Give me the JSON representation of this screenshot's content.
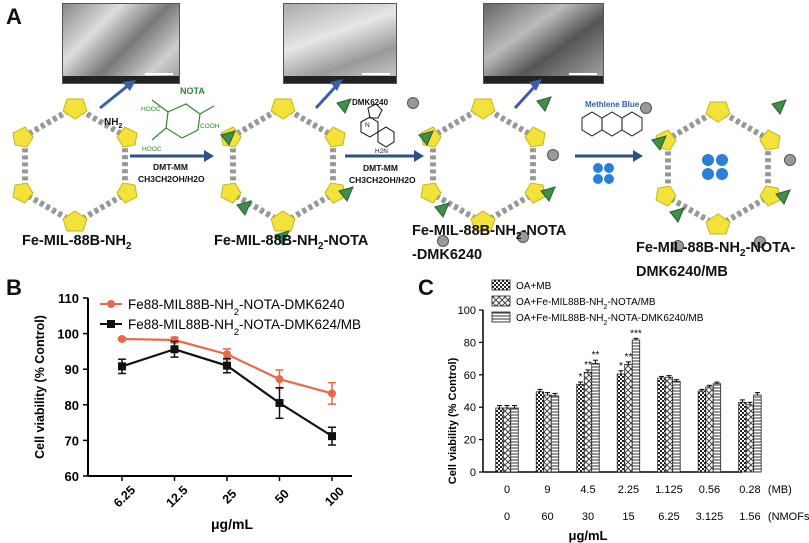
{
  "panelA": {
    "letter": "A",
    "compounds": [
      {
        "main": "Fe-MIL-88B-NH",
        "sub": "2",
        "rest": ""
      },
      {
        "main": "Fe-MIL-88B-NH",
        "sub": "2",
        "rest": "-NOTA"
      },
      {
        "main": "Fe-MIL-88B-NH",
        "sub": "2",
        "rest": "-NOTA",
        "line2": "-DMK6240"
      },
      {
        "main": "Fe-MIL-88B-NH",
        "sub": "2",
        "rest": "-NOTA-",
        "line2": "DMK6240/MB"
      }
    ],
    "nh2_label": "NH",
    "reagents": {
      "nota": "NOTA",
      "dmtmm1": "DMT-MM",
      "solvent1": "CH3CH2OH/H2O",
      "dmk": "DMK6240",
      "dmtmm2": "DMT-MM",
      "solvent2": "CH3CH2OH/H2O",
      "mb": "Methlene Blue"
    },
    "struct_labels": {
      "cooh_a": "HOOC",
      "cooh_b": "COOH",
      "cooh_c": "HOOC",
      "n_atom": "N",
      "nh2": "H2N"
    }
  },
  "panelB": {
    "letter": "B",
    "chart_data": {
      "type": "line",
      "categories": [
        "6.25",
        "12.5",
        "25",
        "50",
        "100"
      ],
      "xlabel": "μg/mL",
      "ylabel": "Cell viability (% Control)",
      "ylim": [
        60,
        110
      ],
      "yticks": [
        60,
        70,
        80,
        90,
        100,
        110
      ],
      "legend_position": "top-right",
      "series": [
        {
          "name": "Fe88-MIL88B-NH2-NOTA-DMK6240",
          "name_parts": [
            "Fe88-MIL88B-NH",
            "2",
            "-NOTA-DMK6240"
          ],
          "color": "#e8694a",
          "marker": "circle",
          "values": [
            98.5,
            98.2,
            94.2,
            87.2,
            83.2
          ],
          "errors": [
            0.4,
            0.8,
            1.5,
            2.6,
            3.0
          ]
        },
        {
          "name": "Fe88-MIL88B-NH2-NOTA-DMK624/MB",
          "name_parts": [
            "Fe88-MIL88B-NH",
            "2",
            "-NOTA-DMK624/MB"
          ],
          "color": "#111111",
          "marker": "square",
          "values": [
            90.8,
            95.6,
            91.0,
            80.5,
            71.2
          ],
          "errors": [
            2.0,
            2.2,
            2.0,
            4.3,
            2.5
          ]
        }
      ]
    }
  },
  "panelC": {
    "letter": "C",
    "chart_data": {
      "type": "bar",
      "categories_mb": [
        "0",
        "9",
        "4.5",
        "2.25",
        "1.125",
        "0.56",
        "0.28"
      ],
      "categories_nmofs": [
        "0",
        "60",
        "30",
        "15",
        "6.25",
        "3.125",
        "1.56"
      ],
      "mb_label": "(MB)",
      "nmofs_label": "(NMOFs)",
      "xlabel": "μg/mL",
      "ylabel": "Cell viability (% Control)",
      "ylim": [
        0,
        100
      ],
      "yticks": [
        0,
        20,
        40,
        60,
        80,
        100
      ],
      "legend_position": "top-left",
      "series": [
        {
          "name": "OA+MB",
          "values": [
            39.5,
            49.5,
            54.0,
            60.5,
            58.0,
            50.0,
            43.0
          ],
          "errors": [
            1.5,
            1.5,
            1.5,
            2.0,
            1.0,
            1.0,
            1.5
          ]
        },
        {
          "name": "OA+Fe-MIL88B-NH2-NOTA/MB",
          "name_parts": [
            "OA+Fe-MIL88B-NH",
            "2",
            "-NOTA/MB"
          ],
          "values": [
            39.5,
            47.5,
            61.5,
            66.5,
            58.5,
            52.5,
            41.5
          ],
          "errors": [
            1.5,
            1.5,
            1.5,
            1.5,
            1.0,
            1.0,
            1.5
          ]
        },
        {
          "name": "OA+Fe-MIL88B-NH2-NOTA-DMK6240/MB",
          "name_parts": [
            "OA+Fe-MIL88B-NH",
            "2",
            "-NOTA-DMK6240/MB"
          ],
          "values": [
            39.5,
            47.0,
            67.0,
            81.5,
            56.0,
            54.5,
            47.5
          ],
          "errors": [
            1.5,
            1.5,
            2.0,
            1.0,
            1.0,
            1.0,
            1.5
          ]
        }
      ],
      "annotations": [
        {
          "group": 2,
          "series": 0,
          "text": "*"
        },
        {
          "group": 2,
          "series": 1,
          "text": "**"
        },
        {
          "group": 2,
          "series": 2,
          "text": "**"
        },
        {
          "group": 3,
          "series": 0,
          "text": "*"
        },
        {
          "group": 3,
          "series": 1,
          "text": "**"
        },
        {
          "group": 3,
          "series": 2,
          "text": "***"
        }
      ]
    }
  }
}
